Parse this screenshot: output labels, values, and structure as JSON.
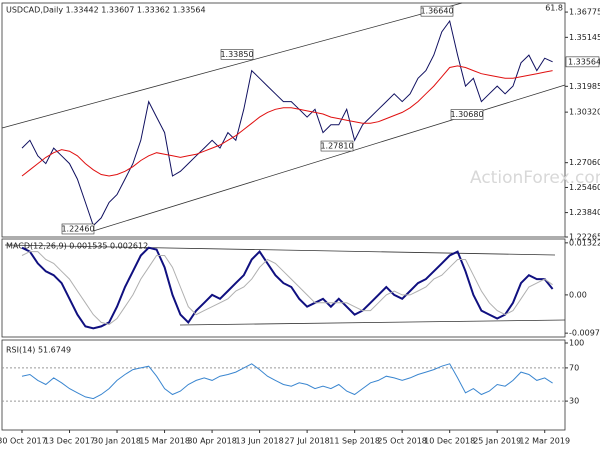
{
  "chart_data": [
    {
      "type": "line",
      "title": "USDCAD,Daily  1.33442 1.33607 1.33362 1.33564",
      "categories": [
        "30 Oct 2017",
        null,
        null,
        null,
        null,
        null,
        "13 Dec 2017",
        null,
        null,
        null,
        null,
        null,
        "30 Jan 2018",
        null,
        null,
        null,
        null,
        null,
        "15 Mar 2018",
        null,
        null,
        null,
        null,
        null,
        "30 Apr 2018",
        null,
        null,
        null,
        null,
        null,
        "13 Jun 2018",
        null,
        null,
        null,
        null,
        null,
        "27 Jul 2018",
        null,
        null,
        null,
        null,
        null,
        "11 Sep 2018",
        null,
        null,
        null,
        null,
        null,
        "25 Oct 2018",
        null,
        null,
        null,
        null,
        null,
        "10 Dec 2018",
        null,
        null,
        null,
        null,
        null,
        "25 Jan 2019",
        null,
        null,
        null,
        null,
        null,
        "12 Mar 2019",
        null
      ],
      "series": [
        {
          "color": "#101060",
          "values": [
            1.28,
            1.285,
            1.275,
            1.27,
            1.28,
            1.275,
            1.27,
            1.26,
            1.245,
            1.23,
            1.235,
            1.245,
            1.25,
            1.26,
            1.27,
            1.285,
            1.31,
            1.3,
            1.29,
            1.262,
            1.265,
            1.27,
            1.275,
            1.28,
            1.285,
            1.28,
            1.29,
            1.285,
            1.305,
            1.33,
            1.325,
            1.32,
            1.315,
            1.31,
            1.31,
            1.305,
            1.3,
            1.305,
            1.29,
            1.295,
            1.295,
            1.305,
            1.285,
            1.295,
            1.3,
            1.305,
            1.31,
            1.315,
            1.31,
            1.315,
            1.325,
            1.33,
            1.34,
            1.355,
            1.362,
            1.34,
            1.32,
            1.325,
            1.31,
            1.315,
            1.32,
            1.315,
            1.32,
            1.335,
            1.34,
            1.33,
            1.338,
            1.33564
          ]
        },
        {
          "color": "#e01010",
          "values": [
            1.262,
            1.266,
            1.27,
            1.274,
            1.277,
            1.279,
            1.278,
            1.275,
            1.27,
            1.266,
            1.263,
            1.262,
            1.263,
            1.265,
            1.268,
            1.272,
            1.275,
            1.277,
            1.276,
            1.275,
            1.274,
            1.275,
            1.276,
            1.278,
            1.28,
            1.282,
            1.285,
            1.288,
            1.292,
            1.296,
            1.3,
            1.303,
            1.305,
            1.306,
            1.306,
            1.305,
            1.304,
            1.303,
            1.302,
            1.3,
            1.299,
            1.298,
            1.297,
            1.296,
            1.296,
            1.297,
            1.299,
            1.301,
            1.303,
            1.306,
            1.31,
            1.315,
            1.32,
            1.326,
            1.332,
            1.333,
            1.332,
            1.33,
            1.328,
            1.327,
            1.326,
            1.325,
            1.325,
            1.326,
            1.327,
            1.328,
            1.329,
            1.33
          ]
        }
      ],
      "ylim": [
        1.22265,
        1.3736
      ],
      "yticks": [
        1.36775,
        1.35145,
        1.31985,
        {
          "value": 1.3032,
          "label": "1.30320"
        },
        {
          "value": 1.2706,
          "label": "1.27060"
        },
        {
          "value": 1.2546,
          "label": "1.25460"
        },
        {
          "value": 1.2384,
          "label": "1.23840"
        },
        1.22265
      ],
      "last_price": 1.33564,
      "annotations": [
        {
          "value": 1.2246,
          "label": "1.22460"
        },
        {
          "value": 1.3385,
          "label": "1.33850"
        },
        {
          "value": 1.2781,
          "label": "1.27810"
        },
        {
          "value": 1.3664,
          "label": "1.36640"
        },
        {
          "value": 1.3068,
          "label": "1.30680"
        }
      ],
      "fib_label": "61.8",
      "watermark": "ActionForex.com"
    },
    {
      "type": "line",
      "title": "MACD(12,26,9) 0.001535 0.002612",
      "series": [
        {
          "color": "#101080",
          "values": [
            0.012,
            0.011,
            0.008,
            0.006,
            0.005,
            0.003,
            -0.001,
            -0.005,
            -0.008,
            -0.0085,
            -0.008,
            -0.007,
            -0.003,
            0.002,
            0.006,
            0.01,
            0.012,
            0.0115,
            0.007,
            0.0,
            -0.005,
            -0.007,
            -0.004,
            -0.002,
            0.0,
            -0.001,
            0.001,
            0.003,
            0.005,
            0.009,
            0.011,
            0.008,
            0.005,
            0.003,
            0.002,
            -0.001,
            -0.003,
            -0.002,
            -0.001,
            -0.003,
            -0.001,
            -0.003,
            -0.005,
            -0.004,
            -0.002,
            0.0,
            0.002,
            0.0,
            -0.001,
            0.001,
            0.003,
            0.004,
            0.006,
            0.008,
            0.01,
            0.011,
            0.006,
            0.0,
            -0.004,
            -0.005,
            -0.006,
            -0.005,
            -0.002,
            0.003,
            0.005,
            0.004,
            0.004,
            0.0015
          ]
        },
        {
          "color": "#b0b0b0",
          "values": [
            0.01,
            0.011,
            0.011,
            0.009,
            0.008,
            0.006,
            0.004,
            0.001,
            -0.002,
            -0.005,
            -0.007,
            -0.0075,
            -0.006,
            -0.003,
            0.0,
            0.004,
            0.007,
            0.01,
            0.01,
            0.007,
            0.002,
            -0.003,
            -0.005,
            -0.004,
            -0.003,
            -0.002,
            -0.001,
            0.001,
            0.002,
            0.004,
            0.007,
            0.009,
            0.008,
            0.006,
            0.004,
            0.002,
            0.0,
            -0.002,
            -0.002,
            -0.002,
            -0.002,
            -0.002,
            -0.003,
            -0.004,
            -0.004,
            -0.002,
            0.0,
            0.001,
            0.0,
            0.0,
            0.001,
            0.002,
            0.004,
            0.005,
            0.007,
            0.009,
            0.009,
            0.005,
            0.001,
            -0.002,
            -0.004,
            -0.005,
            -0.004,
            -0.001,
            0.002,
            0.003,
            0.004,
            0.0026
          ]
        }
      ],
      "ylim": [
        -0.0107,
        0.0142
      ],
      "yticks": [
        0.013224,
        {
          "value": 0,
          "label": "0.00"
        },
        -0.009721
      ]
    },
    {
      "type": "line",
      "title": "RSI(14) 51.6749",
      "series": [
        {
          "color": "#3a86d0",
          "values": [
            60,
            62,
            55,
            50,
            58,
            52,
            45,
            40,
            35,
            33,
            38,
            45,
            55,
            62,
            68,
            70,
            72,
            60,
            45,
            38,
            42,
            50,
            55,
            58,
            55,
            60,
            62,
            65,
            70,
            75,
            68,
            60,
            55,
            50,
            48,
            52,
            50,
            45,
            48,
            45,
            50,
            42,
            38,
            45,
            52,
            55,
            60,
            58,
            55,
            58,
            62,
            65,
            68,
            72,
            75,
            58,
            40,
            45,
            38,
            42,
            50,
            48,
            55,
            65,
            62,
            55,
            58,
            51.67
          ]
        }
      ],
      "ylim": [
        0,
        100
      ],
      "yticks": [
        100,
        70,
        30
      ]
    }
  ]
}
